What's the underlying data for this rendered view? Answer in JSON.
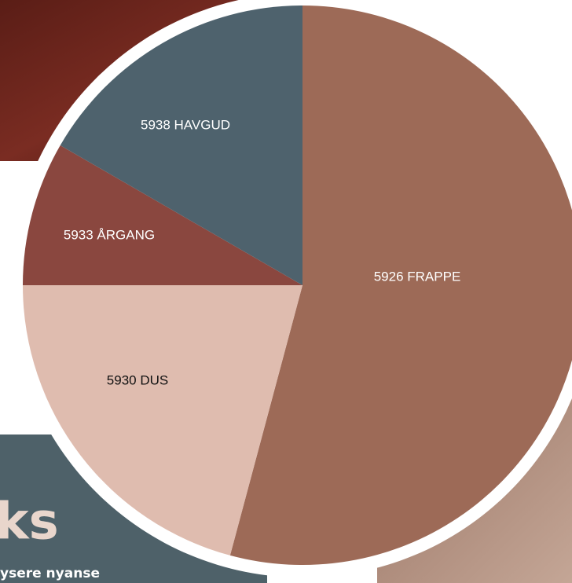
{
  "heading": "ks",
  "subtext": "ysere nyanse",
  "swatches": [
    {
      "label": "5926 FRAPPE",
      "color": "#9d6a57",
      "text_color": "#ffffff"
    },
    {
      "label": "5930 DUS",
      "color": "#dfbcaf",
      "text_color": "#111111"
    },
    {
      "label": "5933 ÅRGANG",
      "color": "#8a473f",
      "text_color": "#ffffff"
    },
    {
      "label": "5938 HAVGUD",
      "color": "#4e626d",
      "text_color": "#ffffff"
    }
  ]
}
